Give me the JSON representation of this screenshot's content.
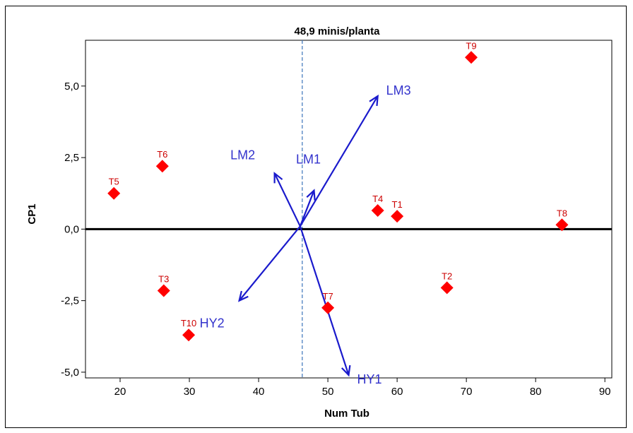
{
  "chart_data": {
    "type": "scatter",
    "title": "48,9 minis/planta",
    "xlabel": "Num Tub",
    "ylabel": "CP1",
    "xlim": [
      15,
      91
    ],
    "ylim": [
      -5.2,
      6.6
    ],
    "x_ticks": [
      20,
      30,
      40,
      50,
      60,
      70,
      80,
      90
    ],
    "x_tick_labels": [
      "20",
      "30",
      "40",
      "50",
      "60",
      "70",
      "80",
      "90"
    ],
    "y_ticks": [
      -5.0,
      -2.5,
      0.0,
      2.5,
      5.0
    ],
    "y_tick_labels": [
      "-5,0",
      "-2,5",
      "0,0",
      "2,5",
      "5,0"
    ],
    "reference_vline_x": 46.3,
    "reference_hline_y": 0.0,
    "grid": false,
    "legend": "none",
    "points": [
      {
        "label": "T1",
        "x": 60.0,
        "y": 0.45
      },
      {
        "label": "T2",
        "x": 67.2,
        "y": -2.05
      },
      {
        "label": "T3",
        "x": 26.3,
        "y": -2.15
      },
      {
        "label": "T4",
        "x": 57.2,
        "y": 0.65
      },
      {
        "label": "T5",
        "x": 19.1,
        "y": 1.25
      },
      {
        "label": "T6",
        "x": 26.1,
        "y": 2.2
      },
      {
        "label": "T7",
        "x": 50.0,
        "y": -2.75
      },
      {
        "label": "T8",
        "x": 83.8,
        "y": 0.15
      },
      {
        "label": "T9",
        "x": 70.7,
        "y": 6.0
      },
      {
        "label": "T10",
        "x": 29.9,
        "y": -3.7
      }
    ],
    "vectors_origin": {
      "x": 46.0,
      "y": 0.1
    },
    "vectors": [
      {
        "label": "LM1",
        "x_end": 48.0,
        "y_end": 1.35
      },
      {
        "label": "LM2",
        "x_end": 42.3,
        "y_end": 1.95
      },
      {
        "label": "LM3",
        "x_end": 57.2,
        "y_end": 4.65
      },
      {
        "label": "HY1",
        "x_end": 53.0,
        "y_end": -5.1
      },
      {
        "label": "HY2",
        "x_end": 37.2,
        "y_end": -2.5
      }
    ]
  },
  "colors": {
    "points": "#ff0000",
    "point_labels": "#cc0000",
    "vectors": "#1a1acc",
    "vector_labels": "#3333cc",
    "reference_vline": "#4a7fc0",
    "axes": "#000000"
  }
}
